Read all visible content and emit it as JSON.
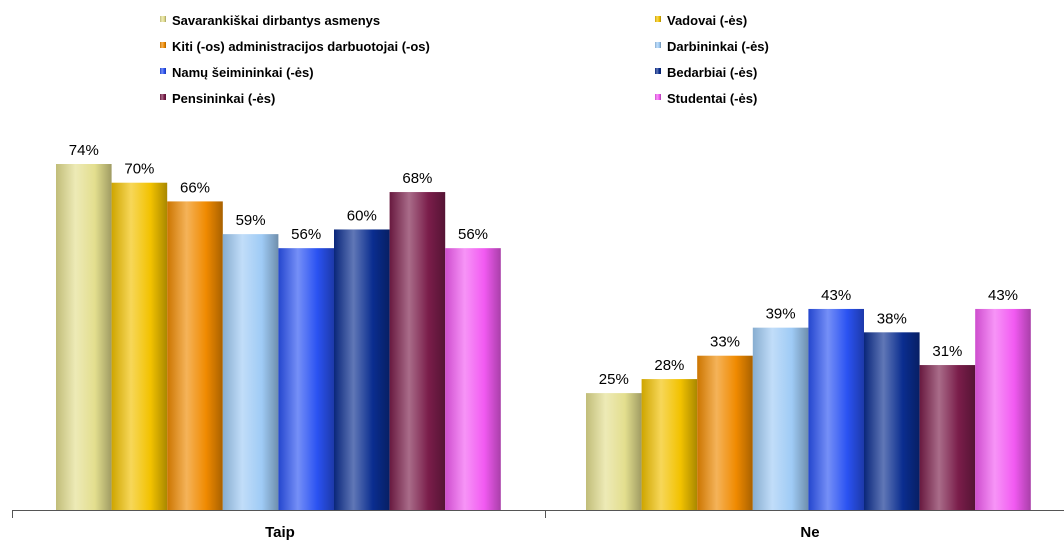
{
  "chart_data": {
    "type": "bar",
    "title": "",
    "xlabel": "",
    "ylabel": "",
    "ylim": [
      0,
      100
    ],
    "grid": false,
    "legend_position": "top",
    "value_format": "percent",
    "categories": [
      "Taip",
      "Ne"
    ],
    "series": [
      {
        "name": "Savarankiškai dirbantys asmenys",
        "values": [
          74,
          25
        ],
        "color": "#e3de8e"
      },
      {
        "name": "Vadovai (-ės)",
        "values": [
          70,
          28
        ],
        "color": "#f2c200"
      },
      {
        "name": "Kiti (-os) administracijos darbuotojai (-os)",
        "values": [
          66,
          33
        ],
        "color": "#f08a00"
      },
      {
        "name": "Darbininkai (-ės)",
        "values": [
          59,
          39
        ],
        "color": "#9fcbf5"
      },
      {
        "name": "Namų šeimininkai (-ės)",
        "values": [
          56,
          43
        ],
        "color": "#2a52f2"
      },
      {
        "name": "Bedarbiai (-ės)",
        "values": [
          60,
          38
        ],
        "color": "#0a2d8f"
      },
      {
        "name": "Pensininkai (-ės)",
        "values": [
          68,
          31
        ],
        "color": "#7a1d4a"
      },
      {
        "name": "Studentai (-ės)",
        "values": [
          56,
          43
        ],
        "color": "#f25af2"
      }
    ]
  }
}
